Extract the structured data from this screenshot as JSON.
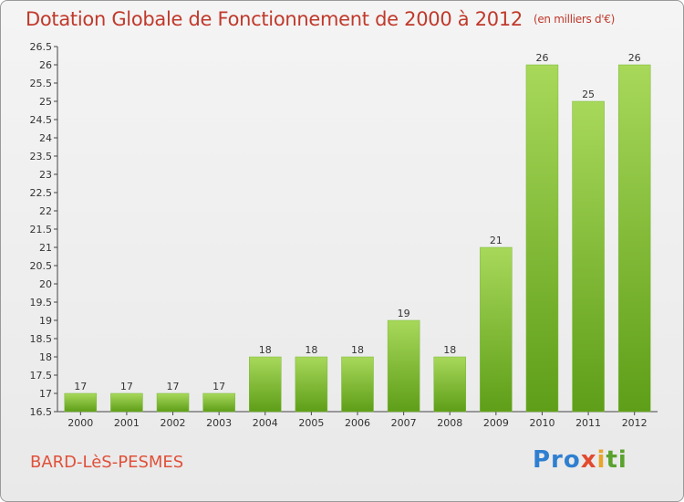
{
  "header": {
    "title": "Dotation Globale de Fonctionnement de 2000 à 2012",
    "unit": "(en milliers d'€)"
  },
  "footer": {
    "place": "BARD-LèS-PESMES",
    "logo": "Proxiti"
  },
  "colors": {
    "bar_light": "#a8d85a",
    "bar_dark": "#5e9e18",
    "title": "#c0392b"
  },
  "chart_data": {
    "type": "bar",
    "categories": [
      "2000",
      "2001",
      "2002",
      "2003",
      "2004",
      "2005",
      "2006",
      "2007",
      "2008",
      "2009",
      "2010",
      "2011",
      "2012"
    ],
    "values": [
      17,
      17,
      17,
      17,
      18,
      18,
      18,
      19,
      18,
      21,
      26,
      25,
      26
    ],
    "title": "Dotation Globale de Fonctionnement de 2000 à 2012",
    "subtitle": "(en milliers d'€)",
    "xlabel": "",
    "ylabel": "",
    "ylim": [
      16.5,
      26.5
    ],
    "yticks": [
      16.5,
      17,
      17.5,
      18,
      18.5,
      19,
      19.5,
      20,
      20.5,
      21,
      21.5,
      22,
      22.5,
      23,
      23.5,
      24,
      24.5,
      25,
      25.5,
      26,
      26.5
    ],
    "grid": false,
    "legend": "none"
  }
}
